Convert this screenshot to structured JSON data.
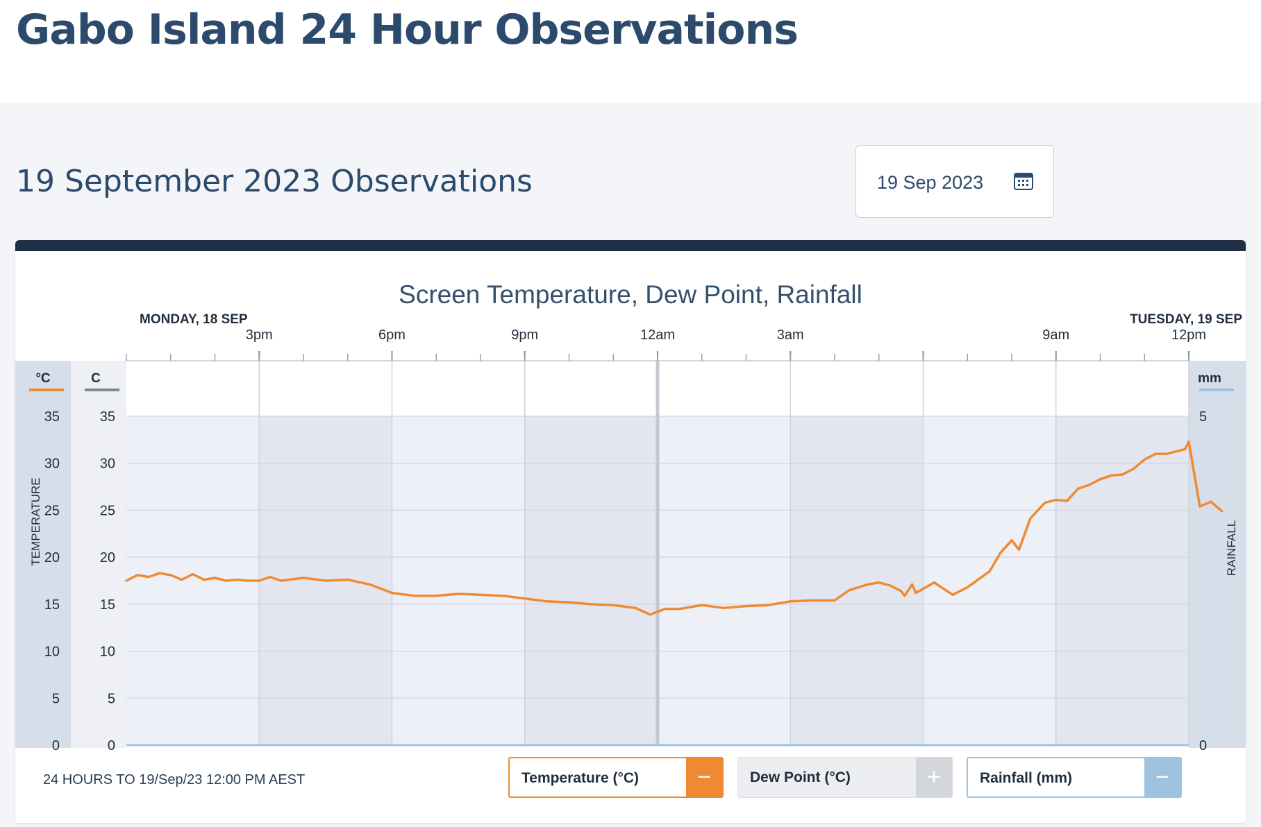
{
  "page": {
    "title": "Gabo Island 24 Hour Observations",
    "heading": "19 September 2023 Observations",
    "date_picker": {
      "value": "19 Sep 2023",
      "icon": "calendar-icon"
    }
  },
  "legend": {
    "temperature": {
      "label": "Temperature (°C)",
      "toggle": "−",
      "color": "#ef8a32",
      "active": true
    },
    "dew_point": {
      "label": "Dew Point (°C)",
      "toggle": "+",
      "active": false
    },
    "rainfall": {
      "label": "Rainfall (mm)",
      "toggle": "−",
      "color": "#9ec3e0",
      "active": true
    }
  },
  "footer": {
    "period": "24 HOURS TO 19/Sep/23 12:00 PM AEST"
  },
  "chart_data": {
    "type": "line",
    "title": "Screen Temperature, Dew Point, Rainfall",
    "day_labels": [
      {
        "label": "MONDAY, 18 SEP",
        "at": "2023-09-18 12:00"
      },
      {
        "label": "TUESDAY, 19 SEP",
        "at": "2023-09-19 12:00"
      }
    ],
    "x_range": [
      "2023-09-18 12:00",
      "2023-09-19 12:00"
    ],
    "x_ticks": [
      {
        "at": "2023-09-18 15:00",
        "label": "3pm"
      },
      {
        "at": "2023-09-18 18:00",
        "label": "6pm"
      },
      {
        "at": "2023-09-18 21:00",
        "label": "9pm"
      },
      {
        "at": "2023-09-19 00:00",
        "label": "12am"
      },
      {
        "at": "2023-09-19 03:00",
        "label": "3am"
      },
      {
        "at": "2023-09-19 06:00",
        "label": ""
      },
      {
        "at": "2023-09-19 09:00",
        "label": "9am"
      },
      {
        "at": "2023-09-19 12:00",
        "label": "12pm"
      }
    ],
    "y_left": {
      "unit": "°C",
      "label": "TEMPERATURE",
      "range": [
        0,
        35
      ],
      "ticks": [
        0,
        5,
        10,
        15,
        20,
        25,
        30,
        35
      ],
      "color": "#ef8a32"
    },
    "y_left2": {
      "unit": "C",
      "range": [
        0,
        35
      ],
      "ticks": [
        0,
        5,
        10,
        15,
        20,
        25,
        30,
        35
      ],
      "color": "#7d8590"
    },
    "y_right": {
      "unit": "mm",
      "label": "RAINFALL",
      "range": [
        0,
        5
      ],
      "ticks": [
        0,
        5
      ],
      "color": "#9ec3e0"
    },
    "series": [
      {
        "name": "Temperature (°C)",
        "color": "#ef8a32",
        "points": [
          [
            "2023-09-18 12:00",
            17.5
          ],
          [
            "2023-09-18 12:15",
            18.1
          ],
          [
            "2023-09-18 12:30",
            17.9
          ],
          [
            "2023-09-18 12:45",
            18.3
          ],
          [
            "2023-09-18 13:00",
            18.1
          ],
          [
            "2023-09-18 13:15",
            17.6
          ],
          [
            "2023-09-18 13:30",
            18.2
          ],
          [
            "2023-09-18 13:45",
            17.6
          ],
          [
            "2023-09-18 14:00",
            17.8
          ],
          [
            "2023-09-18 14:15",
            17.5
          ],
          [
            "2023-09-18 14:30",
            17.6
          ],
          [
            "2023-09-18 14:45",
            17.5
          ],
          [
            "2023-09-18 15:00",
            17.5
          ],
          [
            "2023-09-18 15:15",
            17.9
          ],
          [
            "2023-09-18 15:30",
            17.5
          ],
          [
            "2023-09-18 16:00",
            17.8
          ],
          [
            "2023-09-18 16:30",
            17.5
          ],
          [
            "2023-09-18 17:00",
            17.6
          ],
          [
            "2023-09-18 17:30",
            17.1
          ],
          [
            "2023-09-18 18:00",
            16.2
          ],
          [
            "2023-09-18 18:30",
            15.9
          ],
          [
            "2023-09-18 19:00",
            15.9
          ],
          [
            "2023-09-18 19:30",
            16.1
          ],
          [
            "2023-09-18 20:00",
            16.0
          ],
          [
            "2023-09-18 20:30",
            15.9
          ],
          [
            "2023-09-18 21:00",
            15.6
          ],
          [
            "2023-09-18 21:30",
            15.3
          ],
          [
            "2023-09-18 22:00",
            15.2
          ],
          [
            "2023-09-18 22:30",
            15.0
          ],
          [
            "2023-09-18 23:00",
            14.9
          ],
          [
            "2023-09-18 23:30",
            14.6
          ],
          [
            "2023-09-18 23:50",
            13.9
          ],
          [
            "2023-09-19 00:10",
            14.5
          ],
          [
            "2023-09-19 00:30",
            14.5
          ],
          [
            "2023-09-19 01:00",
            14.9
          ],
          [
            "2023-09-19 01:30",
            14.6
          ],
          [
            "2023-09-19 02:00",
            14.8
          ],
          [
            "2023-09-19 02:30",
            14.9
          ],
          [
            "2023-09-19 03:00",
            15.3
          ],
          [
            "2023-09-19 03:30",
            15.4
          ],
          [
            "2023-09-19 04:00",
            15.4
          ],
          [
            "2023-09-19 04:20",
            16.5
          ],
          [
            "2023-09-19 04:45",
            17.1
          ],
          [
            "2023-09-19 05:00",
            17.3
          ],
          [
            "2023-09-19 05:15",
            17.0
          ],
          [
            "2023-09-19 05:30",
            16.4
          ],
          [
            "2023-09-19 05:35",
            15.9
          ],
          [
            "2023-09-19 05:45",
            17.1
          ],
          [
            "2023-09-19 05:50",
            16.2
          ],
          [
            "2023-09-19 06:15",
            17.3
          ],
          [
            "2023-09-19 06:40",
            16.0
          ],
          [
            "2023-09-19 07:00",
            16.8
          ],
          [
            "2023-09-19 07:30",
            18.5
          ],
          [
            "2023-09-19 07:45",
            20.5
          ],
          [
            "2023-09-19 08:00",
            21.8
          ],
          [
            "2023-09-19 08:10",
            20.8
          ],
          [
            "2023-09-19 08:25",
            24.1
          ],
          [
            "2023-09-19 08:45",
            25.8
          ],
          [
            "2023-09-19 09:00",
            26.1
          ],
          [
            "2023-09-19 09:15",
            26.0
          ],
          [
            "2023-09-19 09:30",
            27.3
          ],
          [
            "2023-09-19 09:45",
            27.7
          ],
          [
            "2023-09-19 10:00",
            28.3
          ],
          [
            "2023-09-19 10:15",
            28.7
          ],
          [
            "2023-09-19 10:30",
            28.8
          ],
          [
            "2023-09-19 10:45",
            29.4
          ],
          [
            "2023-09-19 11:00",
            30.4
          ],
          [
            "2023-09-19 11:15",
            31.0
          ],
          [
            "2023-09-19 11:30",
            31.0
          ],
          [
            "2023-09-19 11:45",
            31.3
          ],
          [
            "2023-09-19 11:55",
            31.5
          ],
          [
            "2023-09-19 12:00",
            32.3
          ],
          [
            "2023-09-19 12:05",
            30.0
          ],
          [
            "2023-09-19 12:15",
            25.4
          ],
          [
            "2023-09-19 12:30",
            25.9
          ],
          [
            "2023-09-19 12:45",
            24.9
          ]
        ]
      }
    ],
    "grid": true
  }
}
